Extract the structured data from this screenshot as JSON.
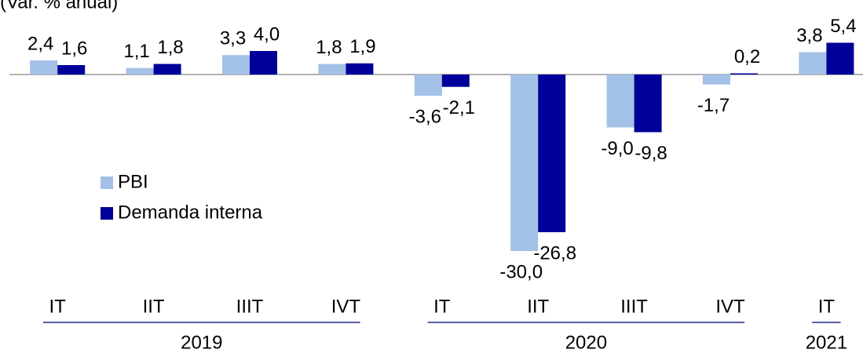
{
  "chart_data": {
    "type": "bar",
    "subtitle": "(Var. % anual)",
    "categories": [
      "IT",
      "IIT",
      "IIIT",
      "IVT",
      "IT",
      "IIT",
      "IIIT",
      "IVT",
      "IT"
    ],
    "groups": [
      {
        "label": "2019",
        "size": 4
      },
      {
        "label": "2020",
        "size": 4
      },
      {
        "label": "2021",
        "size": 1
      }
    ],
    "series": [
      {
        "name": "PBI",
        "color": "#a3c0e6",
        "values": [
          2.4,
          1.1,
          3.3,
          1.8,
          -3.6,
          -30.0,
          -9.0,
          -1.7,
          3.8
        ],
        "value_labels": [
          "2,4",
          "1,1",
          "3,3",
          "1,8",
          "-3,6",
          "-30,0",
          "-9,0",
          "-1,7",
          "3,8"
        ]
      },
      {
        "name": "Demanda interna",
        "color": "#000099",
        "values": [
          1.6,
          1.8,
          4.0,
          1.9,
          -2.1,
          -26.8,
          -9.8,
          0.2,
          5.4
        ],
        "value_labels": [
          "1,6",
          "1,8",
          "4,0",
          "1,9",
          "-2,1",
          "-26,8",
          "-9,8",
          "0,2",
          "5,4"
        ]
      }
    ],
    "ylim": [
      -35,
      12.5
    ],
    "legend": "center-left"
  }
}
